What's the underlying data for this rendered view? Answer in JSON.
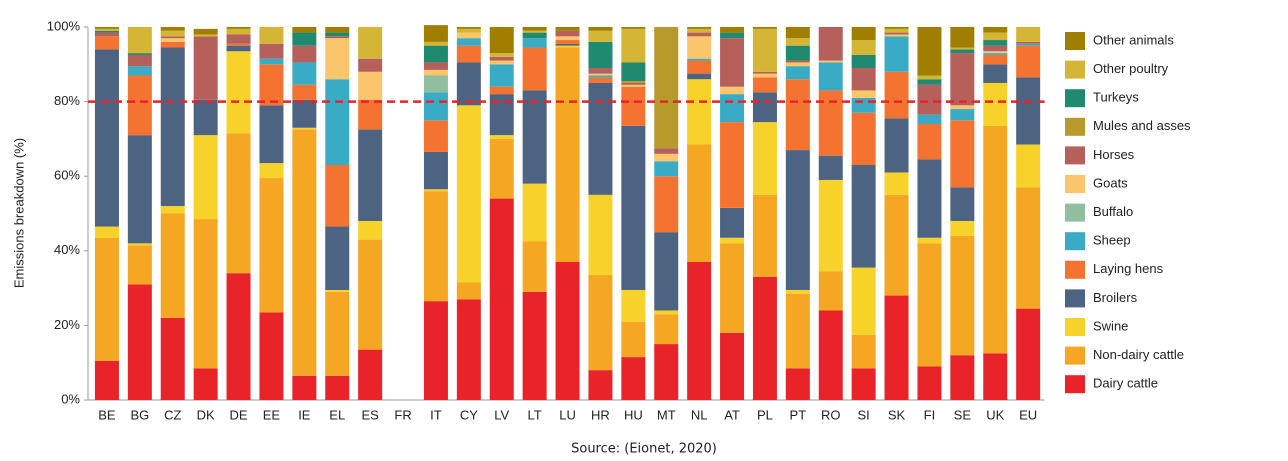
{
  "chart_data": {
    "type": "stacked_bar",
    "y_label": "Emissions breakdown (%)",
    "source": "Source: (Eionet, 2020)",
    "categories": [
      "BE",
      "BG",
      "CZ",
      "DK",
      "DE",
      "EE",
      "IE",
      "EL",
      "ES",
      "FR",
      "IT",
      "CY",
      "LV",
      "LT",
      "LU",
      "HR",
      "HU",
      "MT",
      "NL",
      "AT",
      "PL",
      "PT",
      "RO",
      "SI",
      "SK",
      "FI",
      "SE",
      "UK",
      "EU"
    ],
    "ylim": [
      0,
      100
    ],
    "yticks": [
      {
        "value": 0,
        "label": "0%"
      },
      {
        "value": 20,
        "label": "20%"
      },
      {
        "value": 40,
        "label": "40%"
      },
      {
        "value": 60,
        "label": "60%"
      },
      {
        "value": 80,
        "label": "80%"
      },
      {
        "value": 100,
        "label": "100%"
      }
    ],
    "reference_line": {
      "value": 80,
      "color": "#e8232a"
    },
    "series": [
      {
        "name": "Dairy cattle",
        "color": "#e8232a",
        "values": [
          10.5,
          31,
          22,
          8.5,
          34,
          23.5,
          6.5,
          6.5,
          13.5,
          null,
          26.5,
          27,
          54,
          29,
          37,
          8,
          11.5,
          15,
          37,
          18,
          33,
          8.5,
          24,
          8.5,
          28,
          9,
          12,
          12.5,
          24.5
        ]
      },
      {
        "name": "Non-dairy cattle",
        "color": "#f5a623",
        "values": [
          33,
          10.5,
          28,
          40,
          37.5,
          36,
          66,
          22.5,
          29.5,
          null,
          29.5,
          4.5,
          16,
          13.5,
          57.5,
          25.5,
          9.5,
          8,
          31.5,
          24,
          22,
          20,
          10.5,
          9,
          27,
          33,
          32,
          61,
          32.5
        ]
      },
      {
        "name": "Swine",
        "color": "#f7d22a",
        "values": [
          3,
          0.5,
          2,
          22.5,
          22,
          4,
          0.5,
          0.5,
          5,
          null,
          0.5,
          47.5,
          1,
          15.5,
          0.5,
          21.5,
          8.5,
          1,
          17.5,
          1.5,
          19.5,
          1,
          24.5,
          18,
          6,
          1.5,
          4,
          11.5,
          11.5
        ]
      },
      {
        "name": "Broilers",
        "color": "#4d6382",
        "values": [
          47.5,
          29,
          42.5,
          9.5,
          1.5,
          15.5,
          7.5,
          17,
          24.5,
          null,
          10,
          11.5,
          11,
          25,
          0.5,
          30,
          44,
          21,
          1.5,
          8,
          8,
          37.5,
          6.5,
          27.5,
          14.5,
          21,
          9,
          5,
          18
        ]
      },
      {
        "name": "Laying hens",
        "color": "#f47331",
        "values": [
          3.5,
          16,
          1.5,
          0,
          0.5,
          11,
          4,
          16.5,
          8,
          null,
          8.5,
          4.5,
          2,
          11.5,
          1,
          1.5,
          10.5,
          15,
          3.5,
          23,
          4,
          19,
          17.5,
          14,
          12.5,
          9.5,
          18,
          2.5,
          8.5
        ]
      },
      {
        "name": "Sheep",
        "color": "#3aabc5",
        "values": [
          0,
          2.5,
          0,
          0,
          0,
          1.5,
          6,
          23,
          0,
          null,
          7.5,
          2,
          6,
          2.5,
          0,
          0.5,
          0,
          4,
          0.5,
          7.5,
          0,
          3.5,
          7.5,
          4,
          9.5,
          2.5,
          3,
          0.5,
          0.5
        ]
      },
      {
        "name": "Buffalo",
        "color": "#8fbf9f",
        "values": [
          0,
          0,
          0,
          0,
          0,
          0,
          0,
          0,
          0,
          null,
          4.5,
          0,
          0,
          0,
          0,
          0,
          0,
          0,
          0,
          0,
          0,
          0,
          0,
          0,
          0,
          0,
          0,
          0,
          0
        ]
      },
      {
        "name": "Goats",
        "color": "#fbc56b",
        "values": [
          0,
          0,
          1,
          0,
          0,
          0,
          0,
          11,
          7.5,
          null,
          1.5,
          1.5,
          1,
          0,
          1,
          0.5,
          0.5,
          2,
          6,
          2,
          1,
          1,
          0.5,
          2,
          0.5,
          0,
          1,
          0.5,
          0
        ]
      },
      {
        "name": "Horses",
        "color": "#b5605a",
        "values": [
          1,
          3,
          0.5,
          17,
          2.5,
          4,
          4.5,
          0.5,
          3.5,
          null,
          2,
          0,
          1,
          0,
          1.5,
          1.5,
          0.5,
          1.5,
          1,
          13,
          0.5,
          0.5,
          9,
          6,
          0.5,
          8,
          14,
          1.5,
          0.5
        ]
      },
      {
        "name": "Mules and asses",
        "color": "#b8992b",
        "values": [
          0,
          0,
          0,
          0,
          0,
          0,
          0,
          0,
          0,
          null,
          0,
          0,
          0,
          0,
          0,
          0,
          0.5,
          32.5,
          0,
          0,
          0,
          0,
          0,
          0,
          0,
          0,
          0,
          0,
          0
        ]
      },
      {
        "name": "Turkeys",
        "color": "#1f8a70",
        "values": [
          0.5,
          0.5,
          0,
          0,
          0,
          0,
          3.5,
          1,
          0,
          null,
          4.5,
          0,
          0,
          1.5,
          0,
          7,
          5,
          0,
          0,
          1.5,
          0,
          4,
          0,
          3.5,
          0,
          1.5,
          1,
          1.5,
          0
        ]
      },
      {
        "name": "Other poultry",
        "color": "#d4b535",
        "values": [
          0.5,
          7,
          1.5,
          0.5,
          1.5,
          4.5,
          0,
          0,
          8.5,
          null,
          1,
          1,
          1,
          0.5,
          0,
          3,
          9,
          0,
          1,
          0,
          11.5,
          2,
          0,
          4,
          1,
          1,
          0.5,
          2,
          4
        ]
      },
      {
        "name": "Other animals",
        "color": "#a07f00",
        "values": [
          0.5,
          0,
          1,
          1.5,
          0.5,
          0,
          1.5,
          1.5,
          0,
          null,
          4.5,
          0.5,
          7,
          1,
          1,
          1,
          0.5,
          0,
          0.5,
          1.5,
          0.5,
          3,
          0,
          3.5,
          0.5,
          13,
          5.5,
          1.5,
          0
        ]
      }
    ]
  }
}
